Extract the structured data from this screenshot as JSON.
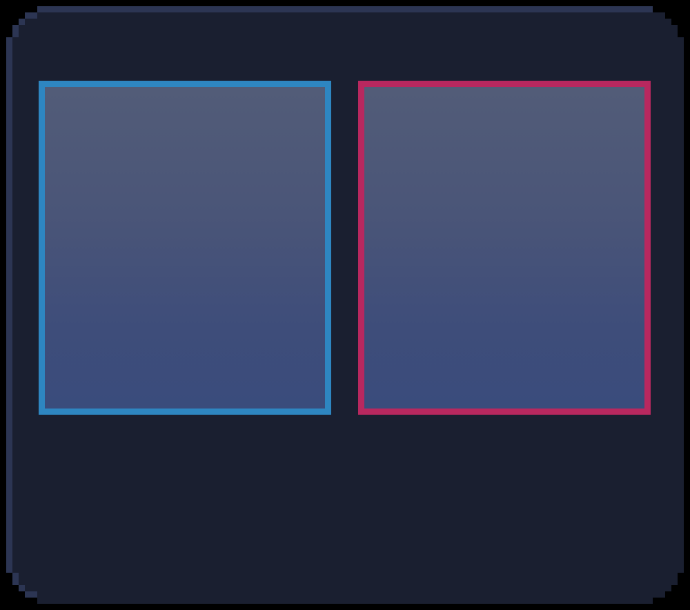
{
  "colors": {
    "frame_outline": "#000000",
    "panel_background": "#1a1f30",
    "panel_bevel": "#2c3553",
    "slot_fill_top": "#525c78",
    "slot_fill_bottom": "#3a4c7c",
    "slot_left_border": "#2e86c1",
    "slot_right_border": "#b8285f"
  },
  "slots": [
    {
      "id": "left",
      "accent": "blue",
      "label": ""
    },
    {
      "id": "right",
      "accent": "pink",
      "label": ""
    }
  ]
}
